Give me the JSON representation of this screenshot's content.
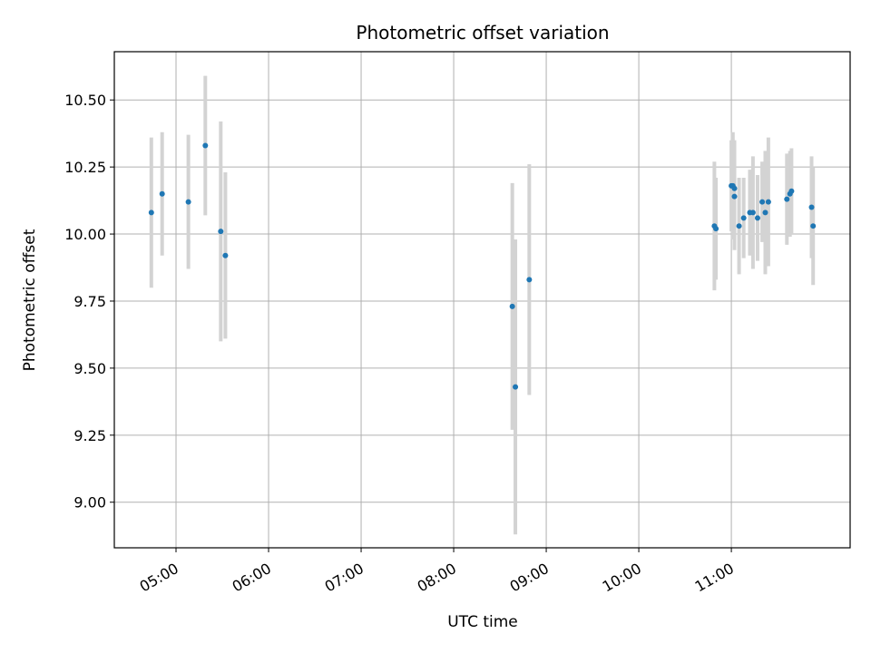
{
  "chart_data": {
    "type": "scatter",
    "title": "Photometric offset variation",
    "xlabel": "UTC time",
    "ylabel": "Photometric offset",
    "xlim": [
      "04:20",
      "12:17"
    ],
    "ylim": [
      8.83,
      10.68
    ],
    "x_ticks": [
      "05:00",
      "06:00",
      "07:00",
      "08:00",
      "09:00",
      "10:00",
      "11:00"
    ],
    "y_ticks": [
      9.0,
      9.25,
      9.5,
      9.75,
      10.0,
      10.25,
      10.5
    ],
    "y_tick_labels": [
      "9.00",
      "9.25",
      "9.50",
      "9.75",
      "10.00",
      "10.25",
      "10.50"
    ],
    "grid": true,
    "legend": "none",
    "colors": {
      "point": "#1f77b4",
      "errorbar": "#d3d3d3",
      "grid": "#b0b0b0"
    },
    "points": [
      {
        "x": "04:44",
        "y": 10.08,
        "err": 0.28
      },
      {
        "x": "04:51",
        "y": 10.15,
        "err": 0.23
      },
      {
        "x": "05:08",
        "y": 10.12,
        "err": 0.25
      },
      {
        "x": "05:19",
        "y": 10.33,
        "err": 0.26
      },
      {
        "x": "05:29",
        "y": 10.01,
        "err": 0.41
      },
      {
        "x": "05:32",
        "y": 9.92,
        "err": 0.31
      },
      {
        "x": "08:38",
        "y": 9.73,
        "err": 0.46
      },
      {
        "x": "08:40",
        "y": 9.43,
        "err": 0.55
      },
      {
        "x": "08:49",
        "y": 9.83,
        "err": 0.43
      },
      {
        "x": "10:49",
        "y": 10.03,
        "err": 0.24
      },
      {
        "x": "10:50",
        "y": 10.02,
        "err": 0.19
      },
      {
        "x": "11:00",
        "y": 10.18,
        "err": 0.17
      },
      {
        "x": "11:01",
        "y": 10.18,
        "err": 0.2
      },
      {
        "x": "11:02",
        "y": 10.17,
        "err": 0.18
      },
      {
        "x": "11:02",
        "y": 10.14,
        "err": 0.2
      },
      {
        "x": "11:05",
        "y": 10.03,
        "err": 0.18
      },
      {
        "x": "11:08",
        "y": 10.06,
        "err": 0.15
      },
      {
        "x": "11:12",
        "y": 10.08,
        "err": 0.16
      },
      {
        "x": "11:14",
        "y": 10.08,
        "err": 0.21
      },
      {
        "x": "11:17",
        "y": 10.06,
        "err": 0.16
      },
      {
        "x": "11:20",
        "y": 10.12,
        "err": 0.15
      },
      {
        "x": "11:22",
        "y": 10.08,
        "err": 0.23
      },
      {
        "x": "11:24",
        "y": 10.12,
        "err": 0.24
      },
      {
        "x": "11:36",
        "y": 10.13,
        "err": 0.17
      },
      {
        "x": "11:38",
        "y": 10.15,
        "err": 0.16
      },
      {
        "x": "11:39",
        "y": 10.16,
        "err": 0.16
      },
      {
        "x": "11:52",
        "y": 10.1,
        "err": 0.19
      },
      {
        "x": "11:53",
        "y": 10.03,
        "err": 0.22
      }
    ]
  }
}
